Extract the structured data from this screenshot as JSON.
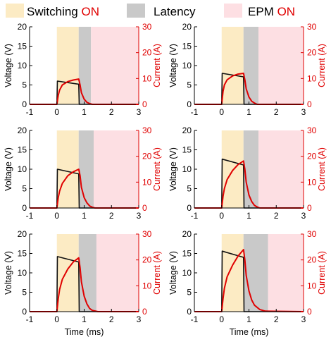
{
  "legend": {
    "items": [
      {
        "label_main": "Switching",
        "label_accent": "ON",
        "color": "#fcebc4"
      },
      {
        "label_main": "Latency",
        "label_accent": "",
        "color": "#c9c9c9"
      },
      {
        "label_main": "EPM",
        "label_accent": "ON",
        "color": "#fddfe3"
      }
    ],
    "accent_color": "#e00000"
  },
  "colors": {
    "voltage": "#111111",
    "current": "#e00000",
    "axis_right": "#e00000",
    "switching": "#fcebc4",
    "latency": "#c9c9c9",
    "epm": "#fddfe3"
  },
  "chart_data": [
    {
      "type": "line",
      "xlabel": "",
      "ylabel": "Voltage (V)",
      "y2label": "Current (A)",
      "xlim": [
        -1,
        3
      ],
      "ylim": [
        0,
        20
      ],
      "y2lim": [
        0,
        30
      ],
      "xticks": [
        -1,
        0,
        1,
        2,
        3
      ],
      "yticks": [
        0,
        5,
        10,
        15,
        20
      ],
      "y2ticks": [
        0,
        10,
        20,
        30
      ],
      "regions": {
        "switching": [
          0,
          0.8
        ],
        "latency": [
          0.8,
          1.25
        ],
        "epm": [
          1.25,
          3
        ]
      },
      "series": [
        {
          "axis": "left",
          "x": [
            -1,
            0,
            0.02,
            0.8,
            0.82,
            1.0,
            3
          ],
          "y": [
            0,
            0,
            6.0,
            5.2,
            0,
            0,
            0
          ]
        },
        {
          "axis": "right",
          "x": [
            -1,
            0,
            0.05,
            0.1,
            0.2,
            0.4,
            0.6,
            0.8,
            0.85,
            0.9,
            1.0,
            1.1,
            1.2,
            1.3,
            3
          ],
          "y": [
            0,
            0,
            3.5,
            5.5,
            7.5,
            8.8,
            9.4,
            9.8,
            7.5,
            4.5,
            2.0,
            0.8,
            0.3,
            0,
            0
          ]
        }
      ]
    },
    {
      "type": "line",
      "xlabel": "",
      "ylabel": "Voltage (V)",
      "y2label": "Current (A)",
      "xlim": [
        -1,
        3
      ],
      "ylim": [
        0,
        20
      ],
      "y2lim": [
        0,
        30
      ],
      "xticks": [
        -1,
        0,
        1,
        2,
        3
      ],
      "yticks": [
        0,
        5,
        10,
        15,
        20
      ],
      "y2ticks": [
        0,
        10,
        20,
        30
      ],
      "regions": {
        "switching": [
          0,
          0.8
        ],
        "latency": [
          0.8,
          1.35
        ],
        "epm": [
          1.35,
          3
        ]
      },
      "series": [
        {
          "axis": "left",
          "x": [
            -1,
            0,
            0.02,
            0.8,
            0.82,
            1.0,
            3
          ],
          "y": [
            0,
            0,
            8.0,
            7.1,
            0,
            0,
            0
          ]
        },
        {
          "axis": "right",
          "x": [
            -1,
            0,
            0.05,
            0.1,
            0.2,
            0.4,
            0.6,
            0.8,
            0.85,
            0.9,
            1.0,
            1.1,
            1.2,
            1.3,
            3
          ],
          "y": [
            0,
            0,
            5.0,
            7.5,
            9.5,
            11.0,
            11.7,
            12.0,
            9.5,
            6.0,
            2.8,
            1.2,
            0.5,
            0,
            0
          ]
        }
      ]
    },
    {
      "type": "line",
      "xlabel": "",
      "ylabel": "Voltage (V)",
      "y2label": "Current (A)",
      "xlim": [
        -1,
        3
      ],
      "ylim": [
        0,
        20
      ],
      "y2lim": [
        0,
        30
      ],
      "xticks": [
        -1,
        0,
        1,
        2,
        3
      ],
      "yticks": [
        0,
        5,
        10,
        15,
        20
      ],
      "y2ticks": [
        0,
        10,
        20,
        30
      ],
      "regions": {
        "switching": [
          0,
          0.8
        ],
        "latency": [
          0.8,
          1.35
        ],
        "epm": [
          1.35,
          3
        ]
      },
      "series": [
        {
          "axis": "left",
          "x": [
            -1,
            0,
            0.02,
            0.8,
            0.82,
            1.0,
            3
          ],
          "y": [
            0,
            0,
            10.0,
            8.8,
            0,
            0,
            0
          ]
        },
        {
          "axis": "right",
          "x": [
            -1,
            0,
            0.05,
            0.1,
            0.2,
            0.4,
            0.6,
            0.8,
            0.85,
            0.9,
            1.0,
            1.1,
            1.2,
            1.3,
            1.4,
            3
          ],
          "y": [
            0,
            0,
            4.0,
            6.5,
            9.5,
            12.5,
            14.0,
            15.0,
            12.5,
            8.0,
            4.0,
            2.0,
            0.8,
            0.3,
            0,
            0
          ]
        }
      ]
    },
    {
      "type": "line",
      "xlabel": "",
      "ylabel": "Voltage (V)",
      "y2label": "Current (A)",
      "xlim": [
        -1,
        3
      ],
      "ylim": [
        0,
        20
      ],
      "y2lim": [
        0,
        30
      ],
      "xticks": [
        -1,
        0,
        1,
        2,
        3
      ],
      "yticks": [
        0,
        5,
        10,
        15,
        20
      ],
      "y2ticks": [
        0,
        10,
        20,
        30
      ],
      "regions": {
        "switching": [
          0,
          0.8
        ],
        "latency": [
          0.8,
          1.35
        ],
        "epm": [
          1.35,
          3
        ]
      },
      "series": [
        {
          "axis": "left",
          "x": [
            -1,
            0,
            0.02,
            0.8,
            0.82,
            1.0,
            3
          ],
          "y": [
            0,
            0,
            12.6,
            11.1,
            0,
            0,
            0
          ]
        },
        {
          "axis": "right",
          "x": [
            -1,
            0,
            0.05,
            0.1,
            0.2,
            0.4,
            0.6,
            0.8,
            0.85,
            0.9,
            1.0,
            1.1,
            1.2,
            1.3,
            1.4,
            3
          ],
          "y": [
            0,
            0,
            4.5,
            7.5,
            11.0,
            14.5,
            16.8,
            18.2,
            15.0,
            10.0,
            5.0,
            2.5,
            1.0,
            0.4,
            0,
            0
          ]
        }
      ]
    },
    {
      "type": "line",
      "xlabel": "Time (ms)",
      "ylabel": "Voltage (V)",
      "y2label": "Current (A)",
      "xlim": [
        -1,
        3
      ],
      "ylim": [
        0,
        20
      ],
      "y2lim": [
        0,
        30
      ],
      "xticks": [
        -1,
        0,
        1,
        2,
        3
      ],
      "yticks": [
        0,
        5,
        10,
        15,
        20
      ],
      "y2ticks": [
        0,
        10,
        20,
        30
      ],
      "regions": {
        "switching": [
          0,
          0.8
        ],
        "latency": [
          0.8,
          1.45
        ],
        "epm": [
          1.45,
          3
        ]
      },
      "series": [
        {
          "axis": "left",
          "x": [
            -1,
            0,
            0.02,
            0.8,
            0.82,
            1.0,
            3
          ],
          "y": [
            0,
            0,
            14.2,
            12.8,
            0,
            0,
            0
          ]
        },
        {
          "axis": "right",
          "x": [
            -1,
            0,
            0.05,
            0.1,
            0.2,
            0.4,
            0.6,
            0.8,
            0.85,
            0.9,
            1.0,
            1.1,
            1.2,
            1.3,
            1.5,
            3
          ],
          "y": [
            0,
            0,
            5.0,
            8.5,
            12.5,
            16.5,
            19.2,
            20.8,
            17.0,
            11.5,
            6.0,
            3.0,
            1.2,
            0.5,
            0,
            0
          ]
        }
      ]
    },
    {
      "type": "line",
      "xlabel": "Time (ms)",
      "ylabel": "Voltage (V)",
      "y2label": "Current (A)",
      "xlim": [
        -1,
        3
      ],
      "ylim": [
        0,
        20
      ],
      "y2lim": [
        0,
        30
      ],
      "xticks": [
        -1,
        0,
        1,
        2,
        3
      ],
      "yticks": [
        0,
        5,
        10,
        15,
        20
      ],
      "y2ticks": [
        0,
        10,
        20,
        30
      ],
      "regions": {
        "switching": [
          0,
          0.8
        ],
        "latency": [
          0.8,
          1.7
        ],
        "epm": [
          1.7,
          3
        ]
      },
      "series": [
        {
          "axis": "left",
          "x": [
            -1,
            0,
            0.02,
            0.8,
            0.82,
            1.0,
            3
          ],
          "y": [
            0,
            0,
            15.6,
            14.0,
            0,
            0,
            0
          ]
        },
        {
          "axis": "right",
          "x": [
            -1,
            0,
            0.05,
            0.1,
            0.2,
            0.4,
            0.6,
            0.8,
            0.85,
            0.9,
            1.0,
            1.1,
            1.2,
            1.4,
            1.6,
            3
          ],
          "y": [
            0,
            0,
            5.0,
            9.0,
            13.5,
            18.0,
            21.5,
            24.0,
            20.0,
            14.0,
            8.0,
            4.5,
            2.5,
            0.8,
            0.2,
            0
          ]
        }
      ]
    }
  ]
}
